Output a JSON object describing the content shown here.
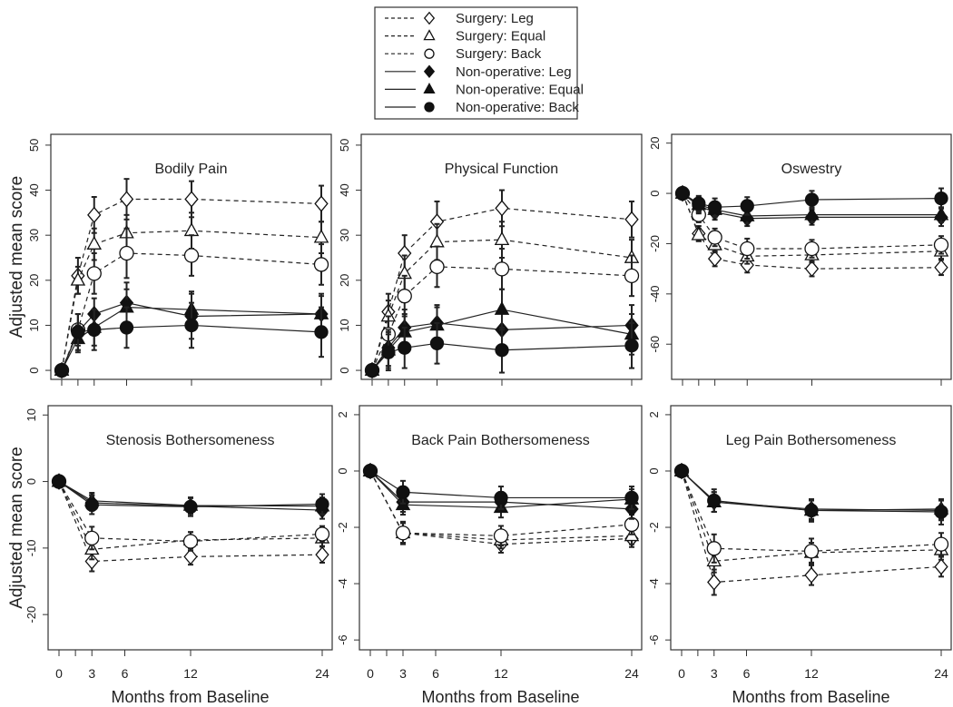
{
  "chart_data": {
    "type": "line",
    "ylabel": "Adjusted mean score",
    "xlabel": "Months from Baseline",
    "xticks": [
      0,
      1.5,
      3,
      6,
      12,
      24
    ],
    "xtick_labels": [
      "0",
      "",
      "3",
      "6",
      "12",
      "24"
    ],
    "xlim": [
      -0.8,
      24.8
    ],
    "legend": {
      "placement": "top-center",
      "entries": [
        {
          "label": "Surgery: Leg",
          "shape": "diamond",
          "filled": false,
          "dashed": true
        },
        {
          "label": "Surgery: Equal",
          "shape": "triangle",
          "filled": false,
          "dashed": true
        },
        {
          "label": "Surgery: Back",
          "shape": "circle",
          "filled": false,
          "dashed": true
        },
        {
          "label": "Non-operative: Leg",
          "shape": "diamond",
          "filled": true,
          "dashed": false
        },
        {
          "label": "Non-operative: Equal",
          "shape": "triangle",
          "filled": true,
          "dashed": false
        },
        {
          "label": "Non-operative: Back",
          "shape": "circle",
          "filled": true,
          "dashed": false
        }
      ]
    },
    "panels": [
      {
        "title": "Bodily Pain",
        "ylim": [
          -2,
          52.4
        ],
        "yticks": [
          0,
          10,
          20,
          30,
          40,
          50
        ],
        "x": [
          0,
          1.5,
          3,
          6,
          12,
          24
        ],
        "series": [
          {
            "name": "Surgery: Leg",
            "values": [
              0,
              21,
              34.5,
              38,
              38,
              37
            ],
            "err": [
              0,
              4,
              4,
              4.5,
              4,
              4
            ]
          },
          {
            "name": "Surgery: Equal",
            "values": [
              0,
              20,
              28,
              30.5,
              31,
              29.5
            ],
            "err": [
              0,
              3,
              3.5,
              4,
              4,
              3.5
            ]
          },
          {
            "name": "Surgery: Back",
            "values": [
              0,
              9,
              21.5,
              26,
              25.5,
              23.5
            ],
            "err": [
              0,
              3.5,
              4.5,
              5.5,
              4.5,
              4.5
            ]
          },
          {
            "name": "Non-operative: Leg",
            "values": [
              0,
              8.5,
              12.5,
              15,
              12,
              12.5
            ],
            "err": [
              0,
              4,
              3.5,
              4.5,
              5,
              4.5
            ]
          },
          {
            "name": "Non-operative: Equal",
            "values": [
              0,
              7,
              9.5,
              14,
              13.5,
              12.5
            ],
            "err": [
              0,
              3,
              4,
              4,
              4,
              4
            ]
          },
          {
            "name": "Non-operative: Back",
            "values": [
              0,
              8.5,
              9,
              9.5,
              10,
              8.5
            ],
            "err": [
              0,
              4,
              4.5,
              4.5,
              5,
              5.5
            ]
          }
        ]
      },
      {
        "title": "Physical Function",
        "ylim": [
          -2,
          52.4
        ],
        "yticks": [
          0,
          10,
          20,
          30,
          40,
          50
        ],
        "x": [
          0,
          1.5,
          3,
          6,
          12,
          24
        ],
        "series": [
          {
            "name": "Surgery: Leg",
            "values": [
              0,
              13,
              26,
              33,
              36,
              33.5
            ],
            "err": [
              0,
              4,
              4,
              4.5,
              4,
              4
            ]
          },
          {
            "name": "Surgery: Equal",
            "values": [
              0,
              12,
              21.5,
              28.5,
              29,
              25
            ],
            "err": [
              0,
              3.5,
              4,
              4,
              4,
              4
            ]
          },
          {
            "name": "Surgery: Back",
            "values": [
              0,
              8,
              16.5,
              23,
              22.5,
              21
            ],
            "err": [
              0,
              4,
              4.5,
              4.5,
              4.5,
              4.5
            ]
          },
          {
            "name": "Non-operative: Leg",
            "values": [
              0,
              5,
              9.5,
              10.5,
              9,
              10
            ],
            "err": [
              0,
              4,
              4,
              4,
              4.5,
              4.5
            ]
          },
          {
            "name": "Non-operative: Equal",
            "values": [
              0,
              4.5,
              8.5,
              10,
              13.5,
              8
            ],
            "err": [
              0,
              4,
              4,
              4,
              4.5,
              4.5
            ]
          },
          {
            "name": "Non-operative: Back",
            "values": [
              0,
              4,
              5,
              6,
              4.5,
              5.5
            ],
            "err": [
              0,
              4,
              4.5,
              4.5,
              5,
              5
            ]
          }
        ]
      },
      {
        "title": "Oswestry",
        "ylim": [
          -74,
          23.5
        ],
        "yticks": [
          -60,
          -40,
          -20,
          0,
          20
        ],
        "x": [
          0,
          1.5,
          3,
          6,
          12,
          24
        ],
        "series": [
          {
            "name": "Surgery: Leg",
            "values": [
              0,
              -16,
              -26,
              -28.5,
              -30,
              -29.5
            ],
            "err": [
              0,
              3,
              3,
              3,
              3,
              3
            ]
          },
          {
            "name": "Surgery: Equal",
            "values": [
              0,
              -16.5,
              -20.5,
              -25,
              -24.5,
              -23
            ],
            "err": [
              0,
              2.5,
              3,
              3,
              3,
              3
            ]
          },
          {
            "name": "Surgery: Back",
            "values": [
              0,
              -8.5,
              -17.5,
              -22,
              -22,
              -20.5
            ],
            "err": [
              0,
              3,
              3.5,
              4,
              3.5,
              3.5
            ]
          },
          {
            "name": "Non-operative: Leg",
            "values": [
              0,
              -5,
              -7.5,
              -10,
              -9.5,
              -9.5
            ],
            "err": [
              0,
              3,
              3,
              3,
              3,
              3.5
            ]
          },
          {
            "name": "Non-operative: Equal",
            "values": [
              0,
              -4.5,
              -6.5,
              -9,
              -8.5,
              -8.5
            ],
            "err": [
              0,
              3,
              3,
              3,
              3,
              3
            ]
          },
          {
            "name": "Non-operative: Back",
            "values": [
              0,
              -4,
              -5.5,
              -5,
              -2.5,
              -2
            ],
            "err": [
              0,
              3,
              3.5,
              3.5,
              3.5,
              4
            ]
          }
        ]
      },
      {
        "title": "Stenosis Bothersomeness",
        "ylim": [
          -25.3,
          11.4
        ],
        "yticks": [
          -20,
          -10,
          0,
          10
        ],
        "x": [
          0,
          3,
          12,
          24
        ],
        "series": [
          {
            "name": "Surgery: Leg",
            "values": [
              0,
              -12,
              -11.3,
              -11
            ],
            "err": [
              0,
              1.5,
              1.2,
              1.2
            ]
          },
          {
            "name": "Surgery: Equal",
            "values": [
              0,
              -10.2,
              -8.8,
              -8.5
            ],
            "err": [
              0,
              1.5,
              1.2,
              1.2
            ]
          },
          {
            "name": "Surgery: Back",
            "values": [
              0,
              -8.5,
              -9,
              -7.9
            ],
            "err": [
              0,
              1.7,
              1.4,
              1.2
            ]
          },
          {
            "name": "Non-operative: Leg",
            "values": [
              0,
              -3.2,
              -3.7,
              -4.3
            ],
            "err": [
              0,
              1.2,
              1.2,
              1.3
            ]
          },
          {
            "name": "Non-operative: Equal",
            "values": [
              0,
              -2.9,
              -3.6,
              -3.7
            ],
            "err": [
              0,
              1.2,
              1.2,
              1.3
            ]
          },
          {
            "name": "Non-operative: Back",
            "values": [
              0,
              -3.5,
              -3.8,
              -3.4
            ],
            "err": [
              0,
              1.4,
              1.4,
              1.5
            ]
          }
        ]
      },
      {
        "title": "Back Pain Bothersomeness",
        "ylim": [
          -6.35,
          2.32
        ],
        "yticks": [
          -6,
          -4,
          -2,
          0,
          2
        ],
        "x": [
          0,
          3,
          12,
          24
        ],
        "series": [
          {
            "name": "Surgery: Leg",
            "values": [
              0,
              -2.2,
              -2.6,
              -2.4
            ],
            "err": [
              0,
              0.35,
              0.3,
              0.3
            ]
          },
          {
            "name": "Surgery: Equal",
            "values": [
              0,
              -2.2,
              -2.45,
              -2.3
            ],
            "err": [
              0,
              0.35,
              0.3,
              0.3
            ]
          },
          {
            "name": "Surgery: Back",
            "values": [
              0,
              -2.2,
              -2.3,
              -1.9
            ],
            "err": [
              0,
              0.4,
              0.35,
              0.35
            ]
          },
          {
            "name": "Non-operative: Leg",
            "values": [
              0,
              -1.1,
              -1.1,
              -1.35
            ],
            "err": [
              0,
              0.35,
              0.35,
              0.35
            ]
          },
          {
            "name": "Non-operative: Equal",
            "values": [
              0,
              -1.2,
              -1.3,
              -1.0
            ],
            "err": [
              0,
              0.35,
              0.35,
              0.35
            ]
          },
          {
            "name": "Non-operative: Back",
            "values": [
              0,
              -0.75,
              -0.95,
              -0.95
            ],
            "err": [
              0,
              0.4,
              0.4,
              0.4
            ]
          }
        ]
      },
      {
        "title": "Leg Pain Bothersomeness",
        "ylim": [
          -6.35,
          2.32
        ],
        "yticks": [
          -6,
          -4,
          -2,
          0,
          2
        ],
        "x": [
          0,
          3,
          12,
          24
        ],
        "series": [
          {
            "name": "Surgery: Leg",
            "values": [
              0,
              -3.95,
              -3.7,
              -3.4
            ],
            "err": [
              0,
              0.45,
              0.35,
              0.35
            ]
          },
          {
            "name": "Surgery: Equal",
            "values": [
              0,
              -3.2,
              -2.9,
              -2.8
            ],
            "err": [
              0,
              0.4,
              0.35,
              0.35
            ]
          },
          {
            "name": "Surgery: Back",
            "values": [
              0,
              -2.75,
              -2.85,
              -2.6
            ],
            "err": [
              0,
              0.5,
              0.45,
              0.4
            ]
          },
          {
            "name": "Non-operative: Leg",
            "values": [
              0,
              -1.1,
              -1.35,
              -1.4
            ],
            "err": [
              0,
              0.35,
              0.35,
              0.35
            ]
          },
          {
            "name": "Non-operative: Equal",
            "values": [
              0,
              -1.1,
              -1.4,
              -1.35
            ],
            "err": [
              0,
              0.35,
              0.35,
              0.35
            ]
          },
          {
            "name": "Non-operative: Back",
            "values": [
              0,
              -1.05,
              -1.4,
              -1.45
            ],
            "err": [
              0,
              0.4,
              0.4,
              0.45
            ]
          }
        ]
      }
    ]
  }
}
